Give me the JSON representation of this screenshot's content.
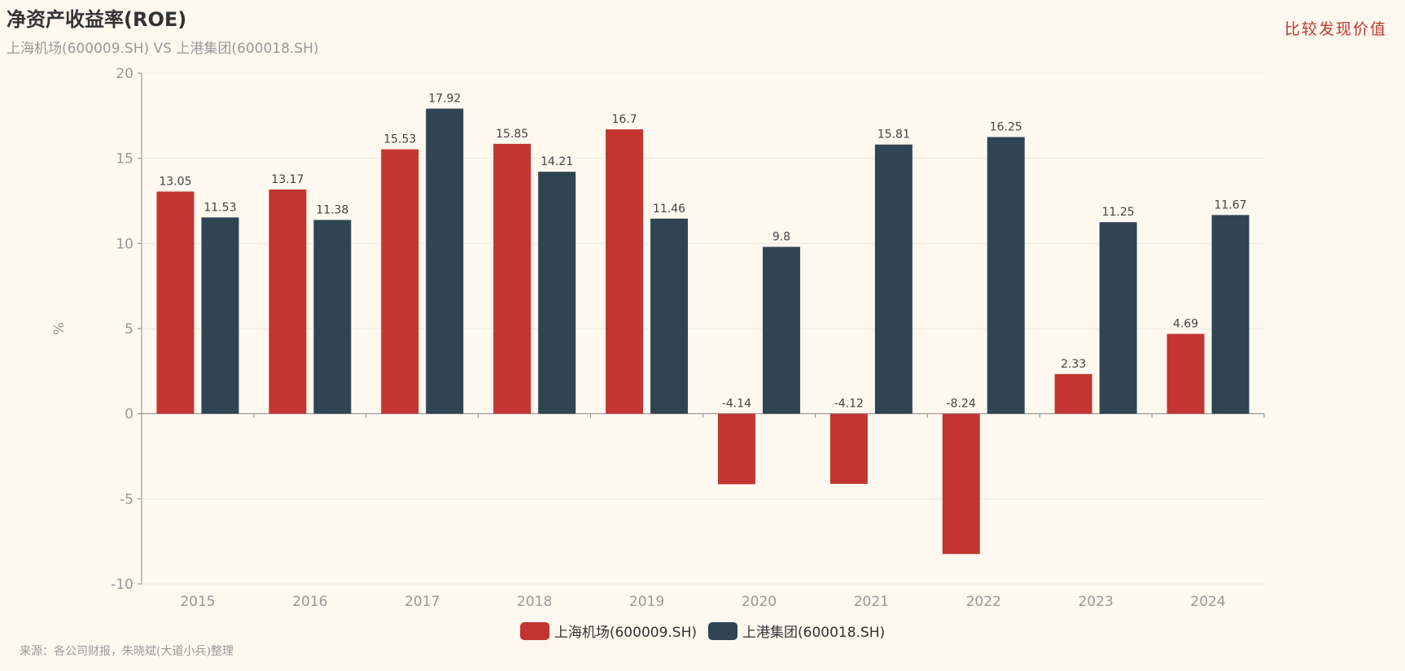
{
  "header": {
    "title": "净资产收益率(ROE)",
    "subtitle": "上海机场(600009.SH) VS 上港集团(600018.SH)",
    "slogan": "比较发现价值"
  },
  "footer": {
    "source": "来源：各公司财报，朱晓斌(大道小兵)整理"
  },
  "chart_data": {
    "type": "bar",
    "title": "净资产收益率(ROE)",
    "subtitle": "上海机场(600009.SH) VS 上港集团(600018.SH)",
    "xlabel": "",
    "ylabel": "%",
    "ylim": [
      -10,
      20
    ],
    "yticks": [
      -10,
      -5,
      0,
      5,
      10,
      15,
      20
    ],
    "grid": true,
    "legend_position": "bottom",
    "categories": [
      "2015",
      "2016",
      "2017",
      "2018",
      "2019",
      "2020",
      "2021",
      "2022",
      "2023",
      "2024"
    ],
    "series": [
      {
        "name": "上海机场(600009.SH)",
        "color": "#c23531",
        "values": [
          13.05,
          13.17,
          15.53,
          15.85,
          16.7,
          -4.14,
          -4.12,
          -8.24,
          2.33,
          4.69
        ]
      },
      {
        "name": "上港集团(600018.SH)",
        "color": "#2f4554",
        "values": [
          11.53,
          11.38,
          17.92,
          14.21,
          11.46,
          9.8,
          15.81,
          16.25,
          11.25,
          11.67
        ]
      }
    ]
  }
}
